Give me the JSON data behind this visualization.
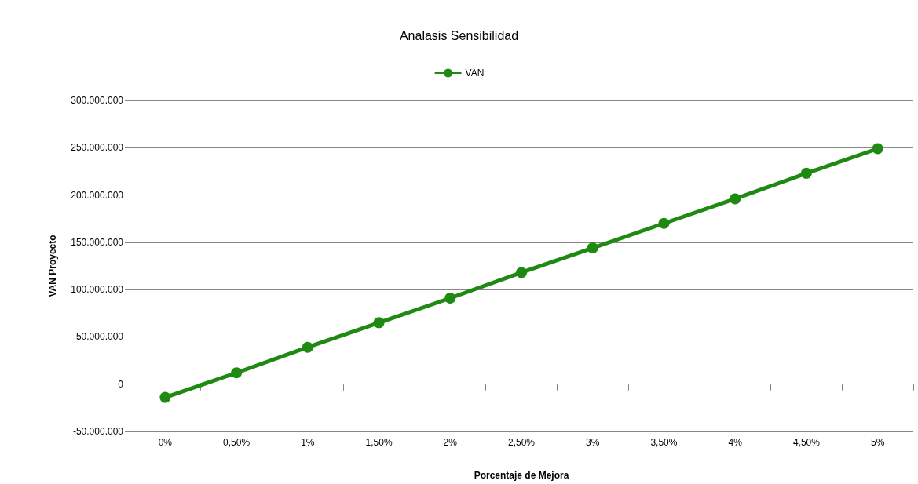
{
  "chart_data": {
    "type": "line",
    "title": "Analasis Sensibilidad",
    "xlabel": "Porcentaje de Mejora",
    "ylabel": "VAN Proyecto",
    "categories": [
      "0%",
      "0,50%",
      "1%",
      "1,50%",
      "2%",
      "2,50%",
      "3%",
      "3,50%",
      "4%",
      "4,50%",
      "5%"
    ],
    "series": [
      {
        "name": "VAN",
        "color": "#1f8a12",
        "values": [
          -14000000,
          12000000,
          39000000,
          65000000,
          91000000,
          118000000,
          144000000,
          170000000,
          196000000,
          223000000,
          249000000
        ]
      }
    ],
    "ylim": [
      -50000000,
      300000000
    ],
    "yticks": [
      {
        "value": -50000000,
        "label": "-50.000.000"
      },
      {
        "value": 0,
        "label": "0"
      },
      {
        "value": 50000000,
        "label": "50.000.000"
      },
      {
        "value": 100000000,
        "label": "100.000.000"
      },
      {
        "value": 150000000,
        "label": "150.000.000"
      },
      {
        "value": 200000000,
        "label": "200.000.000"
      },
      {
        "value": 250000000,
        "label": "250.000.000"
      },
      {
        "value": 300000000,
        "label": "300.000.000"
      }
    ],
    "grid": "y",
    "legend": "top",
    "marker": "circle",
    "line_style": "solid"
  }
}
